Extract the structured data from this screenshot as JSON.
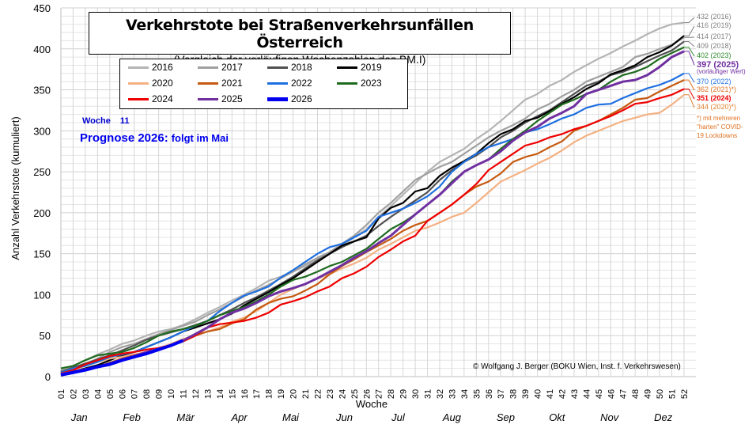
{
  "title": "Verkehrstote bei Straßenverkehrsunfällen Österreich",
  "subtitle": "(Vergleich der vorläufigen Wochenzahlen  des BM.I)",
  "woche_label": "Woche",
  "woche_value": "11",
  "prognose_label": "Prognose 2026:",
  "prognose_value": "folgt im Mai",
  "copyright": "© Wolfgang J. Berger (BOKU Wien, Inst. f. Verkehrswesen)",
  "note": [
    "*) mit mehreren",
    "\"harten\" COVID-",
    "19 Lockdowns"
  ],
  "end_labels": [
    {
      "text": "432 (2016)",
      "color": "#7f7f7f",
      "value": 432
    },
    {
      "text": "416 (2019)",
      "color": "#7f7f7f",
      "value": 416
    },
    {
      "text": "414 (2017)",
      "color": "#7f7f7f",
      "value": 414
    },
    {
      "text": "409 (2018)",
      "color": "#7f7f7f",
      "value": 409
    },
    {
      "text": "402 (2023)",
      "color": "#2e8b2e",
      "value": 402
    },
    {
      "text": "397 (2025)",
      "color": "#7030a0",
      "value": 397
    },
    {
      "text": "(vorläufiger  Wert)",
      "color": "#7030a0",
      "value": null
    },
    {
      "text": "370 (2022)",
      "color": "#1e6fe0",
      "value": 370
    },
    {
      "text": "362 (2021)*)",
      "color": "#e07020",
      "value": 362
    },
    {
      "text": "351 (2024)",
      "color": "#ee0000",
      "value": 351
    },
    {
      "text": "344 (2020)*)",
      "color": "#e08030",
      "value": 344
    }
  ],
  "chart_data": {
    "type": "line",
    "title": "Verkehrstote bei Straßenverkehrsunfällen Österreich",
    "subtitle": "(Vergleich der vorläufigen Wochenzahlen  des BM.I)",
    "xlabel": "Woche",
    "ylabel": "Anzahl Verkehrstote  (kumuliert)",
    "ylim": [
      0,
      450
    ],
    "yticks": [
      0,
      50,
      100,
      150,
      200,
      250,
      300,
      350,
      400,
      450
    ],
    "x": [
      "01",
      "02",
      "03",
      "04",
      "05",
      "06",
      "07",
      "08",
      "09",
      "10",
      "11",
      "12",
      "13",
      "14",
      "15",
      "16",
      "17",
      "18",
      "19",
      "20",
      "21",
      "22",
      "23",
      "24",
      "25",
      "26",
      "27",
      "28",
      "29",
      "30",
      "31",
      "32",
      "33",
      "34",
      "35",
      "36",
      "37",
      "38",
      "39",
      "40",
      "41",
      "42",
      "43",
      "44",
      "45",
      "46",
      "47",
      "48",
      "49",
      "50",
      "51",
      "52"
    ],
    "months": [
      "Jan",
      "Feb",
      "Mär",
      "Apr",
      "Mai",
      "Jun",
      "Jul",
      "Aug",
      "Sep",
      "Okt",
      "Nov",
      "Dez"
    ],
    "grid": true,
    "legend_position": "top-left",
    "series": [
      {
        "name": "2016",
        "color": "#b4b4b4",
        "width": 2.2,
        "values": [
          8,
          13,
          20,
          27,
          33,
          40,
          44,
          50,
          55,
          58,
          63,
          70,
          78,
          85,
          93,
          100,
          108,
          117,
          122,
          128,
          135,
          143,
          150,
          160,
          170,
          180,
          195,
          208,
          222,
          236,
          250,
          262,
          270,
          278,
          290,
          300,
          312,
          325,
          338,
          345,
          355,
          362,
          372,
          380,
          388,
          395,
          403,
          410,
          418,
          425,
          430,
          432
        ]
      },
      {
        "name": "2017",
        "color": "#a0a0a0",
        "width": 2.2,
        "values": [
          5,
          10,
          15,
          22,
          30,
          36,
          40,
          46,
          52,
          57,
          62,
          67,
          75,
          82,
          90,
          98,
          105,
          112,
          120,
          128,
          137,
          145,
          152,
          162,
          172,
          185,
          200,
          212,
          226,
          240,
          248,
          256,
          262,
          272,
          282,
          292,
          300,
          307,
          315,
          326,
          333,
          342,
          350,
          360,
          366,
          372,
          378,
          390,
          394,
          400,
          405,
          414
        ]
      },
      {
        "name": "2018",
        "color": "#505050",
        "width": 2.2,
        "values": [
          6,
          11,
          16,
          21,
          26,
          32,
          38,
          45,
          50,
          54,
          58,
          63,
          68,
          75,
          82,
          90,
          97,
          105,
          113,
          122,
          132,
          142,
          150,
          158,
          165,
          172,
          184,
          195,
          205,
          215,
          225,
          240,
          252,
          262,
          270,
          280,
          292,
          300,
          310,
          318,
          325,
          335,
          345,
          355,
          360,
          368,
          372,
          378,
          385,
          392,
          398,
          409
        ]
      },
      {
        "name": "2019",
        "color": "#000000",
        "width": 2.2,
        "values": [
          3,
          6,
          10,
          14,
          20,
          26,
          30,
          36,
          42,
          48,
          55,
          60,
          65,
          70,
          77,
          87,
          95,
          103,
          112,
          120,
          130,
          140,
          150,
          160,
          165,
          170,
          193,
          206,
          212,
          226,
          230,
          245,
          255,
          263,
          272,
          285,
          296,
          302,
          312,
          316,
          324,
          333,
          341,
          351,
          358,
          369,
          374,
          380,
          390,
          396,
          404,
          416
        ]
      },
      {
        "name": "2020",
        "color": "#f4b183",
        "width": 2.2,
        "values": [
          4,
          8,
          13,
          18,
          22,
          24,
          27,
          30,
          35,
          40,
          46,
          50,
          55,
          60,
          67,
          72,
          80,
          90,
          100,
          107,
          113,
          120,
          125,
          132,
          138,
          145,
          155,
          162,
          170,
          178,
          182,
          188,
          195,
          200,
          212,
          225,
          238,
          245,
          252,
          260,
          267,
          276,
          286,
          294,
          300,
          306,
          312,
          316,
          320,
          322,
          332,
          344
        ]
      },
      {
        "name": "2021",
        "color": "#c55a11",
        "width": 2.2,
        "values": [
          2,
          5,
          8,
          12,
          17,
          22,
          26,
          30,
          33,
          38,
          43,
          50,
          55,
          58,
          65,
          70,
          82,
          90,
          95,
          98,
          105,
          113,
          125,
          135,
          143,
          152,
          160,
          168,
          178,
          185,
          190,
          200,
          210,
          222,
          232,
          238,
          248,
          262,
          268,
          272,
          280,
          287,
          300,
          306,
          312,
          320,
          328,
          338,
          340,
          348,
          355,
          362
        ]
      },
      {
        "name": "2022",
        "color": "#1e6fe0",
        "width": 2.2,
        "values": [
          5,
          10,
          13,
          18,
          24,
          27,
          30,
          36,
          42,
          48,
          55,
          62,
          68,
          80,
          90,
          99,
          104,
          110,
          121,
          130,
          140,
          150,
          158,
          162,
          170,
          178,
          195,
          200,
          205,
          212,
          220,
          232,
          250,
          262,
          272,
          280,
          285,
          290,
          298,
          302,
          308,
          315,
          320,
          328,
          332,
          333,
          340,
          346,
          352,
          356,
          362,
          370
        ]
      },
      {
        "name": "2023",
        "color": "#1f6b1f",
        "width": 2.2,
        "values": [
          10,
          13,
          20,
          26,
          28,
          30,
          35,
          42,
          50,
          55,
          58,
          62,
          68,
          75,
          80,
          85,
          92,
          100,
          110,
          118,
          122,
          128,
          135,
          140,
          148,
          156,
          168,
          180,
          188,
          198,
          210,
          222,
          238,
          250,
          258,
          265,
          278,
          290,
          300,
          312,
          322,
          332,
          338,
          345,
          350,
          360,
          368,
          372,
          378,
          388,
          395,
          402
        ]
      },
      {
        "name": "2024",
        "color": "#ee0000",
        "width": 2.2,
        "values": [
          4,
          8,
          15,
          20,
          25,
          28,
          30,
          33,
          35,
          38,
          43,
          50,
          60,
          64,
          66,
          68,
          72,
          78,
          88,
          92,
          97,
          104,
          110,
          120,
          126,
          134,
          146,
          155,
          165,
          172,
          190,
          200,
          210,
          222,
          235,
          252,
          262,
          272,
          282,
          286,
          292,
          296,
          302,
          306,
          312,
          318,
          325,
          333,
          335,
          340,
          344,
          351
        ]
      },
      {
        "name": "2025",
        "color": "#7030a0",
        "width": 3,
        "values": [
          3,
          6,
          9,
          12,
          16,
          21,
          25,
          30,
          34,
          38,
          44,
          52,
          60,
          70,
          78,
          83,
          90,
          98,
          104,
          108,
          113,
          120,
          128,
          136,
          145,
          153,
          163,
          172,
          185,
          198,
          210,
          222,
          236,
          250,
          258,
          265,
          275,
          288,
          298,
          305,
          315,
          322,
          330,
          345,
          350,
          355,
          360,
          362,
          368,
          378,
          390,
          397
        ]
      },
      {
        "name": "2026",
        "color": "#0000ee",
        "width": 4,
        "values": [
          2,
          5,
          8,
          12,
          15,
          20,
          24,
          28,
          33,
          38,
          44
        ]
      }
    ]
  }
}
